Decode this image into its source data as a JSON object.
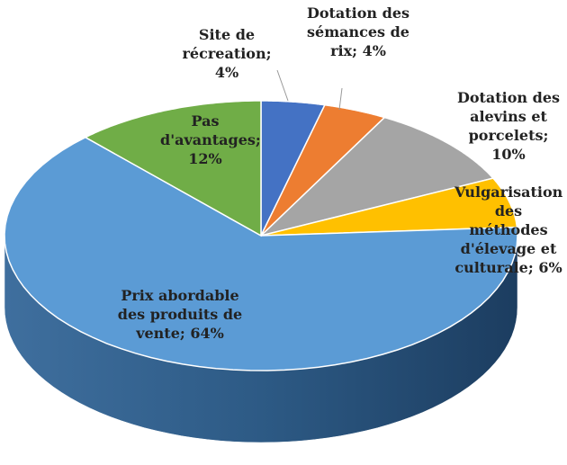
{
  "chart_data": {
    "type": "pie3d",
    "values": [
      4,
      4,
      10,
      6,
      64,
      12
    ],
    "value_labels": [
      "Site de récreation; 4%",
      "Dotation des sémances de rix; 4%",
      "Dotation des alevins et porcelets; 10%",
      "Vulgarisation des méthodes d'élevage et culturale; 6%",
      "Prix abordable des produits de vente; 64%",
      "Pas d'avantages; 12%"
    ],
    "colors": [
      "#4472c4",
      "#ed7d31",
      "#a5a5a5",
      "#ffc000",
      "#5b9bd5",
      "#70ad47"
    ]
  }
}
